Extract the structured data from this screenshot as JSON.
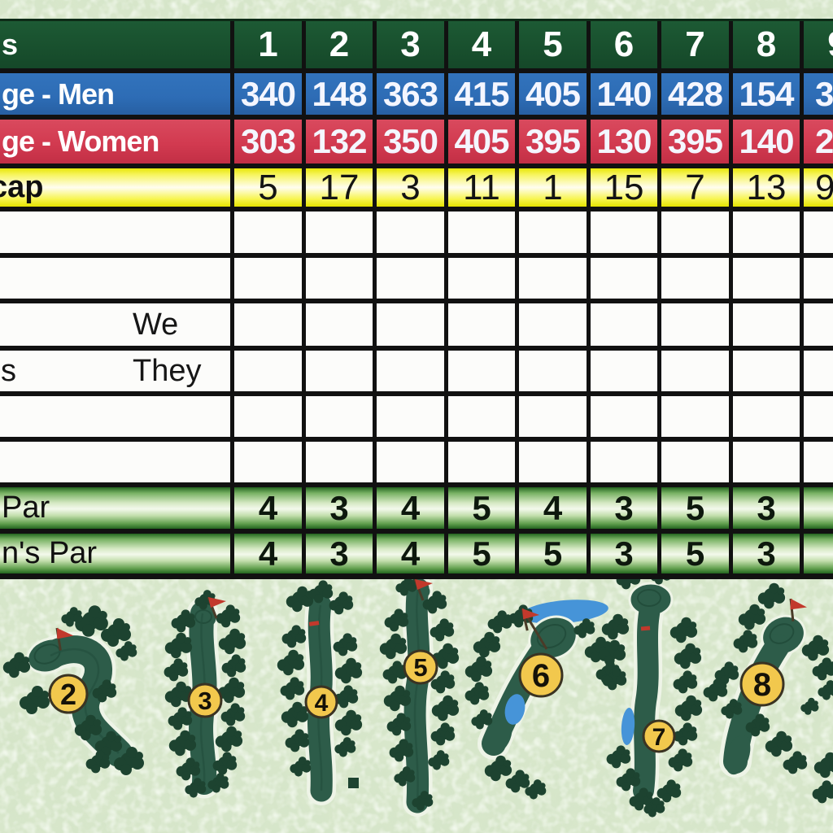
{
  "document_kind": "golf scorecard scan",
  "colors": {
    "header_green": "#1a5330",
    "men_blue": "#2d6cb5",
    "women_red": "#d23a50",
    "handicap_yellow": "#f3f113",
    "par_green": "#55a045",
    "grid_black": "#111111",
    "marker_yellow": "#f2c84d",
    "fairway_green": "#2d5c49",
    "tree_green": "#1d4330",
    "water_blue": "#4694d8",
    "background_green": "#d8e7cb"
  },
  "table": {
    "rows": [
      {
        "id": "holes",
        "kind": "holes",
        "label": "s",
        "cells": [
          "1",
          "2",
          "3",
          "4",
          "5",
          "6",
          "7",
          "8",
          "9"
        ]
      },
      {
        "id": "yardage-men",
        "kind": "yardage-men",
        "label": "ge - Men",
        "cells": [
          "340",
          "148",
          "363",
          "415",
          "405",
          "140",
          "428",
          "154",
          "3"
        ]
      },
      {
        "id": "yardage-women",
        "kind": "yardage-women",
        "label": "ge - Women",
        "cells": [
          "303",
          "132",
          "350",
          "405",
          "395",
          "130",
          "395",
          "140",
          "2"
        ]
      },
      {
        "id": "handicap",
        "kind": "handicap",
        "label": "cap",
        "cells": [
          "5",
          "17",
          "3",
          "11",
          "1",
          "15",
          "7",
          "13",
          "9"
        ]
      },
      {
        "id": "score-1",
        "kind": "score",
        "label": "",
        "cells": [
          "",
          "",
          "",
          "",
          "",
          "",
          "",
          "",
          ""
        ]
      },
      {
        "id": "score-2",
        "kind": "score",
        "label": "",
        "cells": [
          "",
          "",
          "",
          "",
          "",
          "",
          "",
          "",
          ""
        ]
      },
      {
        "id": "score-we",
        "kind": "score",
        "label": "We",
        "cells": [
          "",
          "",
          "",
          "",
          "",
          "",
          "",
          "",
          ""
        ]
      },
      {
        "id": "score-they",
        "kind": "score",
        "label": "They",
        "edge_fragment": "s",
        "cells": [
          "",
          "",
          "",
          "",
          "",
          "",
          "",
          "",
          ""
        ]
      },
      {
        "id": "score-3",
        "kind": "score",
        "label": "",
        "cells": [
          "",
          "",
          "",
          "",
          "",
          "",
          "",
          "",
          ""
        ]
      },
      {
        "id": "score-4",
        "kind": "score",
        "label": "",
        "cells": [
          "",
          "",
          "",
          "",
          "",
          "",
          "",
          "",
          ""
        ]
      },
      {
        "id": "par-men",
        "kind": "par",
        "label": "Par",
        "cells": [
          "4",
          "3",
          "4",
          "5",
          "4",
          "3",
          "5",
          "3",
          ""
        ]
      },
      {
        "id": "par-women",
        "kind": "par",
        "label": "n's Par",
        "cells": [
          "4",
          "3",
          "4",
          "5",
          "5",
          "3",
          "5",
          "3",
          ""
        ]
      }
    ]
  },
  "course_map": {
    "holes": [
      {
        "number": "2"
      },
      {
        "number": "3"
      },
      {
        "number": "4"
      },
      {
        "number": "5"
      },
      {
        "number": "6"
      },
      {
        "number": "7"
      },
      {
        "number": "8"
      }
    ]
  }
}
